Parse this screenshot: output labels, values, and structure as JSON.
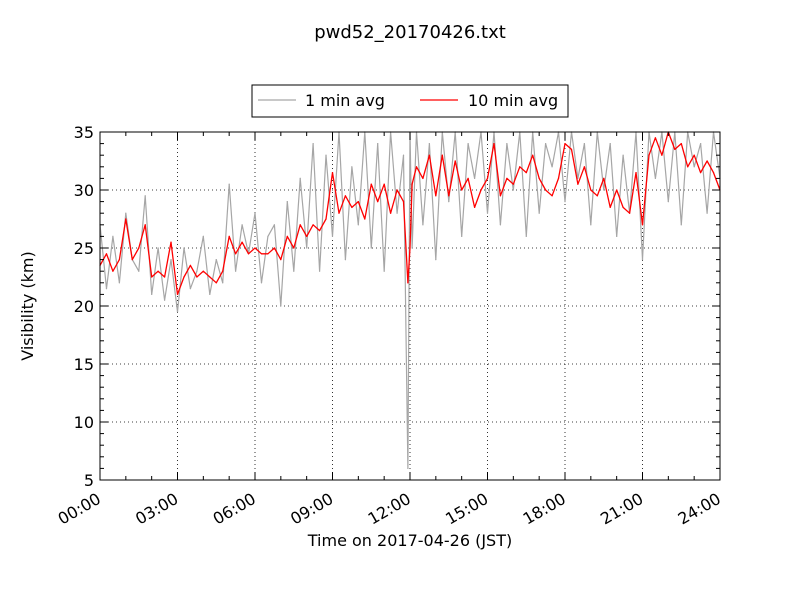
{
  "chart_data": {
    "type": "line",
    "title": "pwd52_20170426.txt",
    "xlabel": "Time on 2017-04-26 (JST)",
    "ylabel": "Visibility (km)",
    "x_ticks": [
      "00:00",
      "03:00",
      "06:00",
      "09:00",
      "12:00",
      "15:00",
      "18:00",
      "21:00",
      "24:00"
    ],
    "y_ticks": [
      5,
      10,
      15,
      20,
      25,
      30,
      35
    ],
    "xlim_hours": [
      0,
      24
    ],
    "ylim": [
      5,
      35
    ],
    "grid": true,
    "legend_position": "top-center",
    "series": [
      {
        "name": "1 min avg",
        "color": "#a6a6a6",
        "x_hours": [
          0,
          0.25,
          0.5,
          0.75,
          1,
          1.25,
          1.5,
          1.75,
          2,
          2.25,
          2.5,
          2.75,
          3,
          3.25,
          3.5,
          3.75,
          4,
          4.25,
          4.5,
          4.75,
          5,
          5.25,
          5.5,
          5.75,
          6,
          6.25,
          6.5,
          6.75,
          7,
          7.25,
          7.5,
          7.75,
          8,
          8.25,
          8.5,
          8.75,
          9,
          9.25,
          9.5,
          9.75,
          10,
          10.25,
          10.5,
          10.75,
          11,
          11.25,
          11.5,
          11.75,
          11.92,
          12,
          12.08,
          12.25,
          12.5,
          12.75,
          13,
          13.25,
          13.5,
          13.75,
          14,
          14.25,
          14.5,
          14.75,
          15,
          15.25,
          15.5,
          15.75,
          16,
          16.25,
          16.5,
          16.75,
          17,
          17.25,
          17.5,
          17.75,
          18,
          18.25,
          18.5,
          18.75,
          19,
          19.25,
          19.5,
          19.75,
          20,
          20.25,
          20.5,
          20.75,
          21,
          21.25,
          21.5,
          21.75,
          22,
          22.25,
          22.5,
          22.75,
          23,
          23.25,
          23.5,
          23.75,
          24
        ],
        "values": [
          27,
          21.5,
          26,
          22,
          28,
          24,
          23,
          29.5,
          21,
          25,
          20.5,
          24,
          19.5,
          25,
          21.5,
          23,
          26,
          21,
          24,
          22,
          30.5,
          23,
          27,
          24.5,
          28,
          22,
          26,
          27,
          20,
          29,
          23,
          31,
          25,
          34,
          23,
          33,
          26,
          35,
          24,
          32,
          27,
          35,
          25,
          34,
          23,
          35,
          28,
          33,
          6,
          35,
          25,
          35,
          27,
          34,
          24,
          35,
          29,
          35,
          26,
          34,
          31,
          35,
          28,
          35,
          27,
          34,
          30,
          35,
          26,
          35,
          28,
          34,
          32,
          35,
          29,
          35,
          31,
          34,
          27,
          35,
          30,
          34,
          26,
          33,
          28,
          35,
          24,
          35,
          31,
          35,
          29,
          35,
          27,
          35,
          32,
          34,
          28,
          35,
          31
        ]
      },
      {
        "name": "10 min avg",
        "color": "#ff0000",
        "x_hours": [
          0,
          0.25,
          0.5,
          0.75,
          1,
          1.25,
          1.5,
          1.75,
          2,
          2.25,
          2.5,
          2.75,
          3,
          3.25,
          3.5,
          3.75,
          4,
          4.25,
          4.5,
          4.75,
          5,
          5.25,
          5.5,
          5.75,
          6,
          6.25,
          6.5,
          6.75,
          7,
          7.25,
          7.5,
          7.75,
          8,
          8.25,
          8.5,
          8.75,
          9,
          9.25,
          9.5,
          9.75,
          10,
          10.25,
          10.5,
          10.75,
          11,
          11.25,
          11.5,
          11.75,
          11.92,
          12,
          12.08,
          12.25,
          12.5,
          12.75,
          13,
          13.25,
          13.5,
          13.75,
          14,
          14.25,
          14.5,
          14.75,
          15,
          15.25,
          15.5,
          15.75,
          16,
          16.25,
          16.5,
          16.75,
          17,
          17.25,
          17.5,
          17.75,
          18,
          18.25,
          18.5,
          18.75,
          19,
          19.25,
          19.5,
          19.75,
          20,
          20.25,
          20.5,
          20.75,
          21,
          21.25,
          21.5,
          21.75,
          22,
          22.25,
          22.5,
          22.75,
          23,
          23.25,
          23.5,
          23.75,
          24
        ],
        "values": [
          23.5,
          24.5,
          23,
          24,
          27.5,
          24,
          25,
          27,
          22.5,
          23,
          22.5,
          25.5,
          21,
          22.5,
          23.5,
          22.5,
          23,
          22.5,
          22,
          23,
          26,
          24.5,
          25.5,
          24.5,
          25,
          24.5,
          24.5,
          25,
          24,
          26,
          25,
          27,
          26,
          27,
          26.5,
          27.5,
          31.5,
          28,
          29.5,
          28.5,
          29,
          27.5,
          30.5,
          29,
          30.5,
          28,
          30,
          29,
          22,
          25,
          30.5,
          32,
          31,
          33,
          29.5,
          33,
          29.5,
          32.5,
          30,
          31,
          28.5,
          30,
          31,
          34,
          29.5,
          31,
          30.5,
          32,
          31.5,
          33,
          31,
          30,
          29.5,
          31,
          34,
          33.5,
          30.5,
          32,
          30,
          29.5,
          31,
          28.5,
          30,
          28.5,
          28,
          31.5,
          27,
          33,
          34.5,
          33,
          35,
          33.5,
          34,
          32,
          33,
          31.5,
          32.5,
          31.5,
          30
        ]
      }
    ]
  }
}
